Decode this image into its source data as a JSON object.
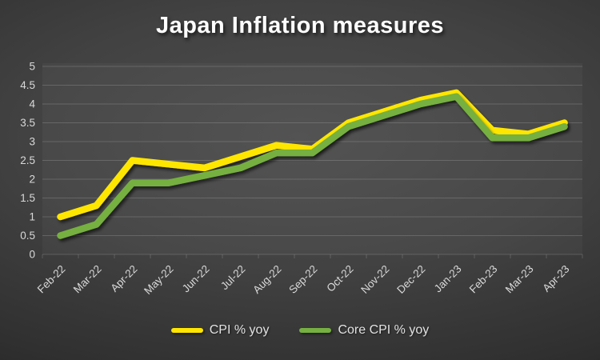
{
  "chart_data": {
    "type": "line",
    "title": "Japan Inflation measures",
    "categories": [
      "Feb-22",
      "Mar-22",
      "Apr-22",
      "May-22",
      "Jun-22",
      "Jul-22",
      "Aug-22",
      "Sep-22",
      "Oct-22",
      "Nov-22",
      "Dec-22",
      "Jan-23",
      "Feb-23",
      "Mar-23",
      "Apr-23"
    ],
    "series": [
      {
        "name": "CPI % yoy",
        "color": "#FFE600",
        "values": [
          1.0,
          1.3,
          2.5,
          2.4,
          2.3,
          2.6,
          2.9,
          2.8,
          3.5,
          3.8,
          4.1,
          4.3,
          3.3,
          3.2,
          3.5
        ]
      },
      {
        "name": "Core CPI % yoy",
        "color": "#76B041",
        "values": [
          0.5,
          0.8,
          1.9,
          1.9,
          2.1,
          2.3,
          2.7,
          2.7,
          3.4,
          3.7,
          4.0,
          4.2,
          3.1,
          3.1,
          3.4
        ]
      }
    ],
    "ylim": [
      0,
      5
    ],
    "ytick_step": 0.5,
    "ytick_labels": [
      "0",
      "0.5",
      "1",
      "1.5",
      "2",
      "2.5",
      "3",
      "3.5",
      "4",
      "4.5",
      "5"
    ],
    "grid": true,
    "legend_position": "bottom",
    "xlabel": "",
    "ylabel": "",
    "axis_text_color": "#D9D9D9",
    "gridline_color": "rgba(255,255,255,0.16)",
    "title_color": "#FFFFFF"
  }
}
